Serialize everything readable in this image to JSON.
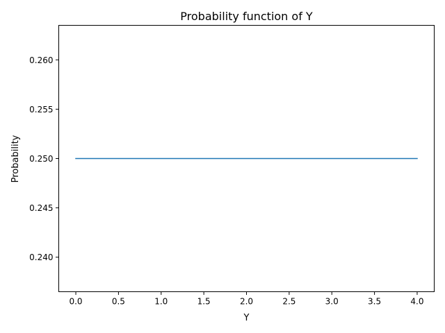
{
  "chart_data": {
    "type": "line",
    "title": "Probability function of Y",
    "xlabel": "Y",
    "ylabel": "Probability",
    "xlim": [
      -0.2,
      4.2
    ],
    "ylim": [
      0.2365,
      0.2635
    ],
    "x_ticks": [
      0.0,
      0.5,
      1.0,
      1.5,
      2.0,
      2.5,
      3.0,
      3.5,
      4.0
    ],
    "x_tick_labels": [
      "0.0",
      "0.5",
      "1.0",
      "1.5",
      "2.0",
      "2.5",
      "3.0",
      "3.5",
      "4.0"
    ],
    "y_ticks": [
      0.24,
      0.245,
      0.25,
      0.255,
      0.26
    ],
    "y_tick_labels": [
      "0.240",
      "0.245",
      "0.250",
      "0.255",
      "0.260"
    ],
    "grid": false,
    "series": [
      {
        "x": [
          0,
          1,
          2,
          3,
          4
        ],
        "y": [
          0.25,
          0.25,
          0.25,
          0.25,
          0.25
        ],
        "color": "#1f77b4"
      }
    ]
  }
}
